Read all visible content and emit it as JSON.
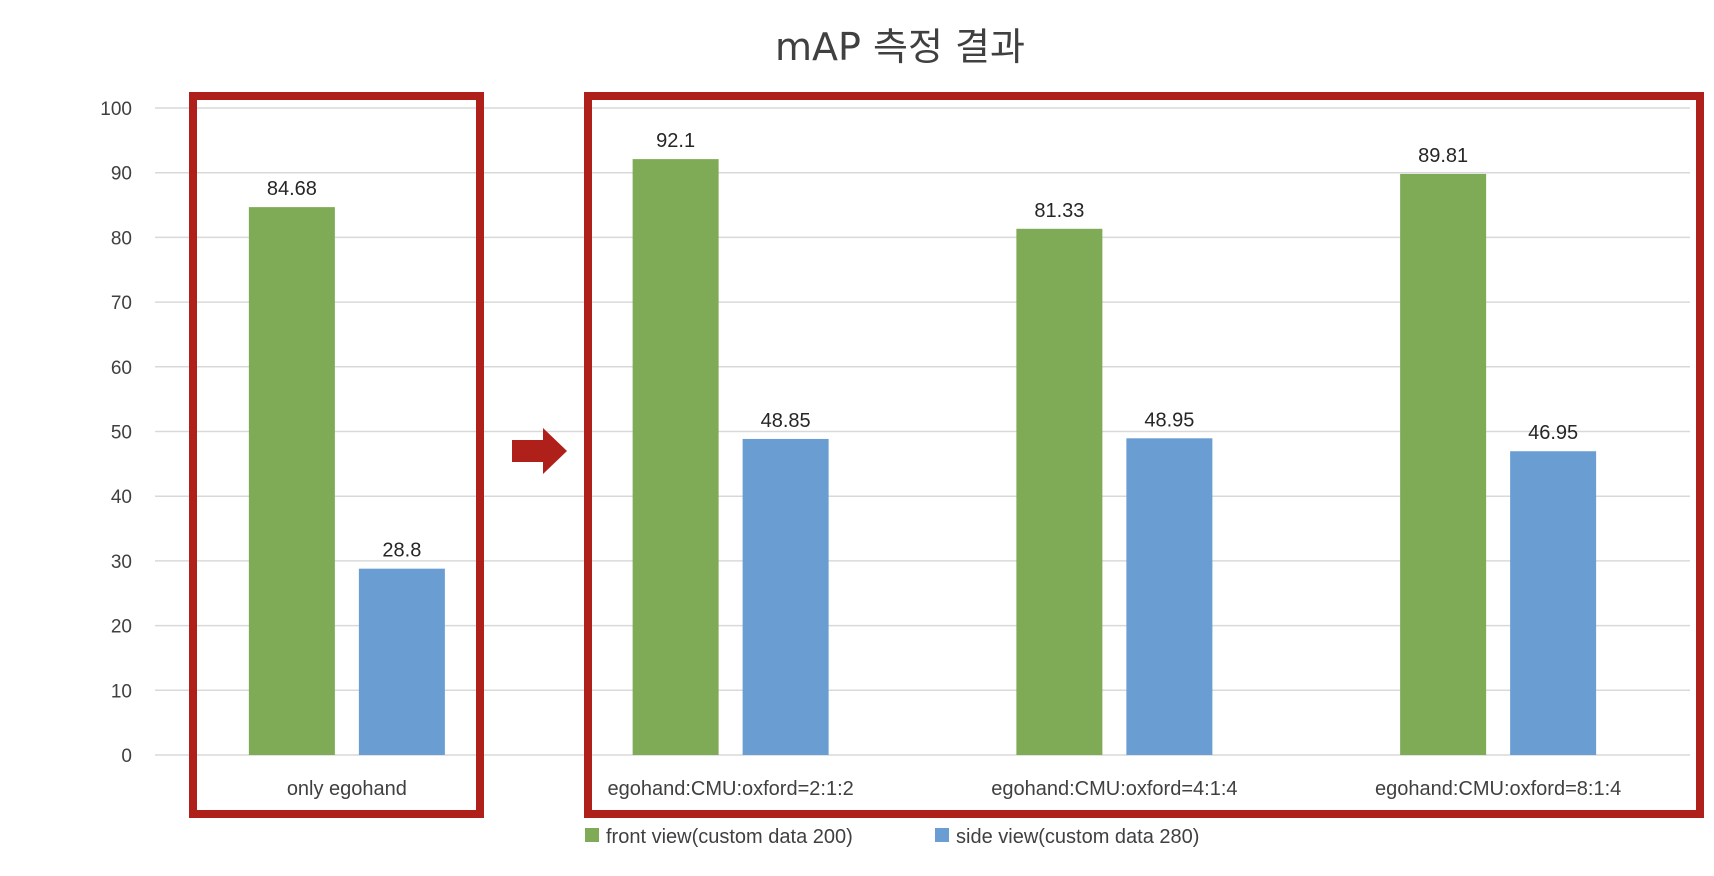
{
  "chart_data": {
    "type": "bar",
    "title": "mAP 측정 결과",
    "xlabel": "",
    "ylabel": "",
    "ylim": [
      0,
      100
    ],
    "yticks": [
      0,
      10,
      20,
      30,
      40,
      50,
      60,
      70,
      80,
      90,
      100
    ],
    "grid": true,
    "legend_position": "bottom",
    "categories": [
      "only egohand",
      "egohand:CMU:oxford=2:1:2",
      "egohand:CMU:oxford=4:1:4",
      "egohand:CMU:oxford=8:1:4"
    ],
    "series": [
      {
        "name": "front view(custom data 200)",
        "color": "#80AB56",
        "values": [
          84.68,
          92.1,
          81.33,
          89.81
        ],
        "labels": [
          "84.68",
          "92.1",
          "81.33",
          "89.81"
        ]
      },
      {
        "name": "side view(custom data 280)",
        "color": "#6A9ED3",
        "values": [
          28.8,
          48.85,
          48.95,
          46.95
        ],
        "labels": [
          "28.8",
          "48.85",
          "48.95",
          "46.95"
        ]
      }
    ],
    "annotations": {
      "highlight_box_color": "#B0201A",
      "arrow_color": "#B0201A",
      "arrow_icon": "right-arrow-icon"
    }
  }
}
